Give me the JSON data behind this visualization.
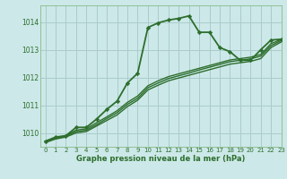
{
  "title": "",
  "xlabel": "Graphe pression niveau de la mer (hPa)",
  "ylabel": "",
  "bg_color": "#cce8e8",
  "grid_color": "#aacccc",
  "line_color": "#2d6e2d",
  "xlim": [
    -0.5,
    23
  ],
  "ylim": [
    1009.5,
    1014.6
  ],
  "yticks": [
    1010,
    1011,
    1012,
    1013,
    1014
  ],
  "xticks": [
    0,
    1,
    2,
    3,
    4,
    5,
    6,
    7,
    8,
    9,
    10,
    11,
    12,
    13,
    14,
    15,
    16,
    17,
    18,
    19,
    20,
    21,
    22,
    23
  ],
  "lines": [
    {
      "x": [
        0,
        1,
        2,
        3,
        4,
        5,
        6,
        7,
        8,
        9,
        10,
        11,
        12,
        13,
        14,
        15,
        16,
        17,
        18,
        19,
        20,
        21,
        22,
        23
      ],
      "y": [
        1009.7,
        1009.85,
        1009.9,
        1010.2,
        1010.2,
        1010.5,
        1010.85,
        1011.15,
        1011.8,
        1012.15,
        1013.8,
        1013.97,
        1014.07,
        1014.13,
        1014.22,
        1013.63,
        1013.63,
        1013.08,
        1012.93,
        1012.62,
        1012.62,
        1013.0,
        1013.35,
        1013.38
      ],
      "marker": "D",
      "lw": 1.3,
      "ms": 2.2
    },
    {
      "x": [
        0,
        1,
        2,
        3,
        4,
        5,
        6,
        7,
        8,
        9,
        10,
        11,
        12,
        13,
        14,
        15,
        16,
        17,
        18,
        19,
        20,
        21,
        22,
        23
      ],
      "y": [
        1009.65,
        1009.78,
        1009.85,
        1010.0,
        1010.05,
        1010.25,
        1010.45,
        1010.65,
        1010.95,
        1011.18,
        1011.55,
        1011.72,
        1011.88,
        1011.98,
        1012.08,
        1012.18,
        1012.28,
        1012.38,
        1012.48,
        1012.53,
        1012.58,
        1012.68,
        1013.08,
        1013.28
      ],
      "marker": null,
      "lw": 1.0
    },
    {
      "x": [
        0,
        1,
        2,
        3,
        4,
        5,
        6,
        7,
        8,
        9,
        10,
        11,
        12,
        13,
        14,
        15,
        16,
        17,
        18,
        19,
        20,
        21,
        22,
        23
      ],
      "y": [
        1009.68,
        1009.8,
        1009.88,
        1010.05,
        1010.1,
        1010.3,
        1010.52,
        1010.73,
        1011.03,
        1011.25,
        1011.63,
        1011.8,
        1011.96,
        1012.06,
        1012.16,
        1012.27,
        1012.37,
        1012.47,
        1012.57,
        1012.62,
        1012.67,
        1012.77,
        1013.15,
        1013.33
      ],
      "marker": null,
      "lw": 1.0
    },
    {
      "x": [
        0,
        1,
        2,
        3,
        4,
        5,
        6,
        7,
        8,
        9,
        10,
        11,
        12,
        13,
        14,
        15,
        16,
        17,
        18,
        19,
        20,
        21,
        22,
        23
      ],
      "y": [
        1009.7,
        1009.82,
        1009.9,
        1010.1,
        1010.15,
        1010.37,
        1010.58,
        1010.8,
        1011.1,
        1011.33,
        1011.7,
        1011.88,
        1012.03,
        1012.13,
        1012.23,
        1012.33,
        1012.43,
        1012.53,
        1012.63,
        1012.68,
        1012.73,
        1012.83,
        1013.22,
        1013.37
      ],
      "marker": null,
      "lw": 1.0
    }
  ]
}
